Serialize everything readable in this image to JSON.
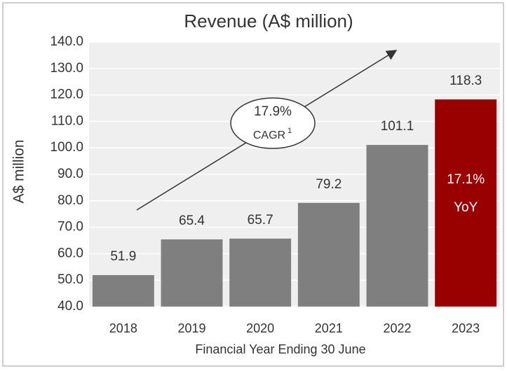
{
  "chart_data": {
    "type": "bar",
    "title": "Revenue (A$ million)",
    "x_label": "Financial Year Ending 30 June",
    "y_label": "A$ million",
    "categories": [
      "2018",
      "2019",
      "2020",
      "2021",
      "2022",
      "2023"
    ],
    "values": [
      51.9,
      65.4,
      65.7,
      79.2,
      101.1,
      118.3
    ],
    "colors": [
      "#7f7f7f",
      "#7f7f7f",
      "#7f7f7f",
      "#7f7f7f",
      "#7f7f7f",
      "#990000"
    ],
    "ylim": [
      40,
      140
    ],
    "yticks": [
      {
        "value": 40,
        "label": "40.0"
      },
      {
        "value": 50,
        "label": "50.0"
      },
      {
        "value": 60,
        "label": "60.0"
      },
      {
        "value": 70,
        "label": "70.0"
      },
      {
        "value": 80,
        "label": "80.0"
      },
      {
        "value": 90,
        "label": "90.0"
      },
      {
        "value": 100,
        "label": "100.0"
      },
      {
        "value": 110,
        "label": "110.0"
      },
      {
        "value": 120,
        "label": "120.0"
      },
      {
        "value": 130,
        "label": "130.0"
      },
      {
        "value": 140,
        "label": "140.0"
      }
    ],
    "grid": true,
    "annotations": {
      "cagr": {
        "rate": "17.9%",
        "label": "CAGR",
        "footnote": "1"
      },
      "yoy": {
        "rate": "17.1%",
        "label": "YoY"
      }
    }
  }
}
